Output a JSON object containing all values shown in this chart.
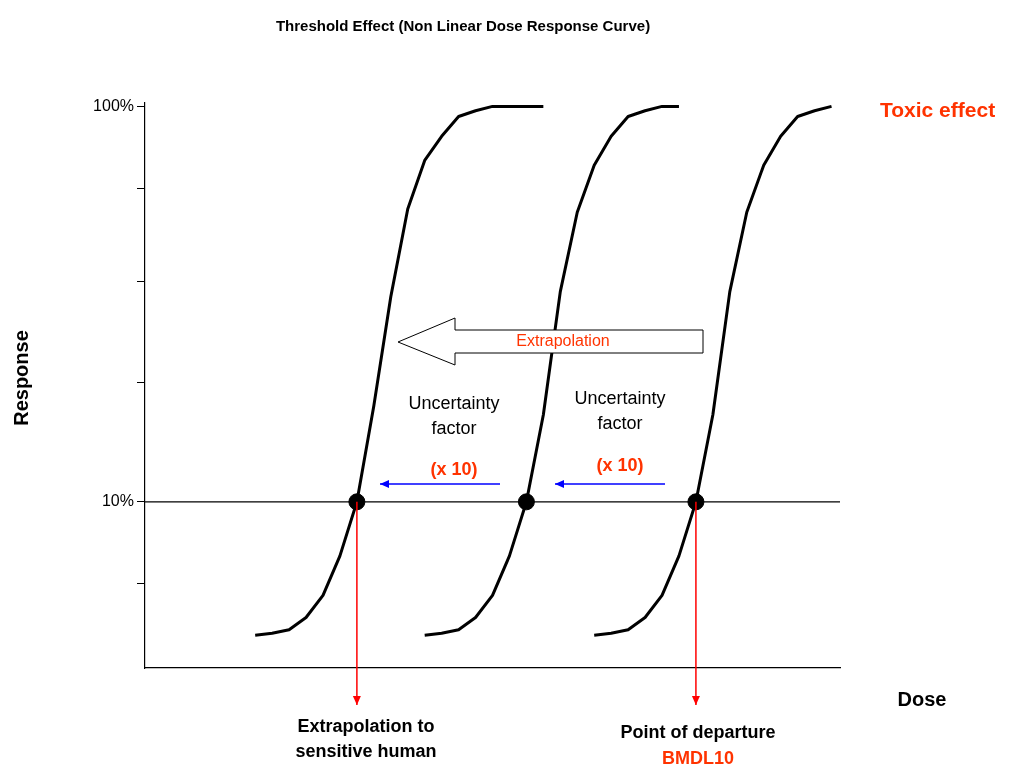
{
  "chart_data": {
    "type": "line",
    "title": "Threshold Effect (Non Linear Dose Response Curve)",
    "xlabel": "Dose",
    "ylabel": "Response",
    "log": "y",
    "ylim": [
      3.8,
      102
    ],
    "categories": [
      null,
      null,
      null,
      null,
      null,
      null,
      null,
      null,
      null,
      null,
      null,
      null,
      null,
      null,
      null,
      null,
      null,
      null,
      null,
      null,
      null,
      null,
      null,
      null,
      null,
      null,
      null,
      null,
      null,
      null,
      null,
      null,
      null,
      null,
      null,
      null,
      null,
      null,
      null,
      null,
      null
    ],
    "yticks": [
      {
        "value": 100,
        "label": "100%"
      },
      {
        "value": 62,
        "label": null
      },
      {
        "value": 36,
        "label": null
      },
      {
        "value": 20,
        "label": null
      },
      {
        "value": 10,
        "label": "10%"
      },
      {
        "value": 6.2,
        "label": null
      }
    ],
    "grid": false,
    "legend": false,
    "marker": "none",
    "line_style": "solid",
    "series": [
      {
        "color": "#000000",
        "values": [
          null,
          null,
          null,
          null,
          null,
          null,
          4.6,
          4.65,
          4.75,
          5.1,
          5.8,
          7.3,
          10,
          17.5,
          33,
          55,
          73,
          84,
          94.3,
          97.5,
          100,
          100,
          100,
          100,
          null,
          null,
          null,
          null,
          null,
          null,
          null,
          null,
          null,
          null,
          null,
          null,
          null,
          null,
          null,
          null,
          null
        ]
      },
      {
        "color": "#000000",
        "values": [
          null,
          null,
          null,
          null,
          null,
          null,
          null,
          null,
          null,
          null,
          null,
          null,
          null,
          null,
          null,
          null,
          4.6,
          4.65,
          4.75,
          5.1,
          5.8,
          7.3,
          10,
          16.6,
          34,
          54,
          71,
          84,
          94.3,
          97.5,
          100,
          100,
          null,
          null,
          null,
          null,
          null,
          null,
          null,
          null,
          null
        ]
      },
      {
        "color": "#000000",
        "values": [
          null,
          null,
          null,
          null,
          null,
          null,
          null,
          null,
          null,
          null,
          null,
          null,
          null,
          null,
          null,
          null,
          null,
          null,
          null,
          null,
          null,
          null,
          null,
          null,
          null,
          null,
          4.6,
          4.65,
          4.75,
          5.1,
          5.8,
          7.3,
          10,
          16.6,
          34,
          54,
          71,
          84,
          94.3,
          97.5,
          100
        ]
      },
      {
        "type": "scatter",
        "marker": "circle",
        "color": "#000000",
        "values": [
          null,
          null,
          null,
          null,
          null,
          null,
          null,
          null,
          null,
          null,
          null,
          null,
          10,
          null,
          null,
          null,
          null,
          null,
          null,
          null,
          null,
          null,
          10,
          null,
          null,
          null,
          null,
          null,
          null,
          null,
          null,
          null,
          10,
          null,
          null,
          null,
          null,
          null,
          null,
          null,
          null
        ]
      }
    ],
    "ref_lines": [
      {
        "axis": "y",
        "value": 10,
        "color": "#000000"
      }
    ],
    "annotations": [
      "Toxic effect",
      "Extrapolation",
      "Uncertainty factor",
      "(x 10)",
      "Uncertainty factor",
      "(x 10)",
      "Extrapolation to sensitive human",
      "Point of departure",
      "BMDL10"
    ]
  }
}
